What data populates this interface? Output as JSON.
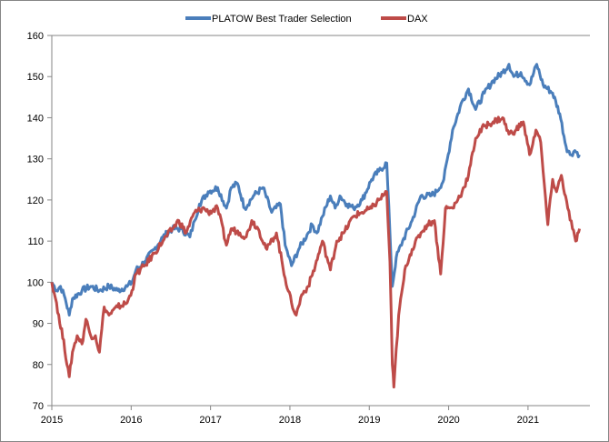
{
  "chart_data": {
    "type": "line",
    "title": "",
    "xlabel": "",
    "ylabel": "",
    "xlim": [
      2015,
      2021.78
    ],
    "ylim": [
      70,
      160
    ],
    "x_ticks": [
      "2015",
      "2016",
      "2017",
      "2018",
      "2019",
      "2020",
      "2021"
    ],
    "y_ticks": [
      "70",
      "80",
      "90",
      "100",
      "110",
      "120",
      "130",
      "140",
      "150",
      "160"
    ],
    "grid": false,
    "legend_position": "top-center",
    "series": [
      {
        "name": "PLATOW Best Trader Selection",
        "color": "#4a7ebb",
        "points": [
          [
            2015.0,
            100
          ],
          [
            2015.06,
            98
          ],
          [
            2015.11,
            99
          ],
          [
            2015.17,
            96
          ],
          [
            2015.22,
            92
          ],
          [
            2015.26,
            96
          ],
          [
            2015.38,
            98
          ],
          [
            2015.49,
            99
          ],
          [
            2015.6,
            98
          ],
          [
            2015.72,
            99
          ],
          [
            2015.83,
            98
          ],
          [
            2015.95,
            99
          ],
          [
            2016.01,
            100
          ],
          [
            2016.06,
            103
          ],
          [
            2016.17,
            105
          ],
          [
            2016.29,
            108
          ],
          [
            2016.4,
            111
          ],
          [
            2016.52,
            113
          ],
          [
            2016.63,
            113
          ],
          [
            2016.74,
            111
          ],
          [
            2016.8,
            115
          ],
          [
            2016.86,
            119
          ],
          [
            2016.97,
            122
          ],
          [
            2017.09,
            123
          ],
          [
            2017.2,
            118
          ],
          [
            2017.26,
            123
          ],
          [
            2017.34,
            124
          ],
          [
            2017.43,
            118
          ],
          [
            2017.54,
            121
          ],
          [
            2017.66,
            123
          ],
          [
            2017.77,
            117
          ],
          [
            2017.88,
            119
          ],
          [
            2017.94,
            109
          ],
          [
            2018.02,
            104
          ],
          [
            2018.11,
            108
          ],
          [
            2018.23,
            112
          ],
          [
            2018.28,
            114
          ],
          [
            2018.34,
            112
          ],
          [
            2018.41,
            116
          ],
          [
            2018.51,
            121
          ],
          [
            2018.57,
            118
          ],
          [
            2018.63,
            121
          ],
          [
            2018.72,
            119
          ],
          [
            2018.8,
            118
          ],
          [
            2018.91,
            120
          ],
          [
            2019.03,
            125
          ],
          [
            2019.12,
            127
          ],
          [
            2019.22,
            129
          ],
          [
            2019.26,
            112
          ],
          [
            2019.29,
            99
          ],
          [
            2019.34,
            106
          ],
          [
            2019.42,
            110
          ],
          [
            2019.54,
            115
          ],
          [
            2019.65,
            121
          ],
          [
            2019.77,
            121
          ],
          [
            2019.85,
            122
          ],
          [
            2019.94,
            125
          ],
          [
            2020.05,
            137
          ],
          [
            2020.17,
            144
          ],
          [
            2020.25,
            147
          ],
          [
            2020.34,
            142
          ],
          [
            2020.45,
            146
          ],
          [
            2020.56,
            149
          ],
          [
            2020.68,
            151
          ],
          [
            2020.76,
            153
          ],
          [
            2020.82,
            150
          ],
          [
            2020.91,
            151
          ],
          [
            2021.02,
            148
          ],
          [
            2021.11,
            153
          ],
          [
            2021.19,
            148
          ],
          [
            2021.31,
            146
          ],
          [
            2021.4,
            141
          ],
          [
            2021.48,
            133
          ],
          [
            2021.53,
            131
          ],
          [
            2021.59,
            132
          ],
          [
            2021.65,
            131
          ]
        ]
      },
      {
        "name": "DAX",
        "color": "#be4b48",
        "points": [
          [
            2015.0,
            100
          ],
          [
            2015.06,
            95
          ],
          [
            2015.1,
            90
          ],
          [
            2015.15,
            86
          ],
          [
            2015.19,
            80
          ],
          [
            2015.22,
            77
          ],
          [
            2015.26,
            83
          ],
          [
            2015.32,
            87
          ],
          [
            2015.38,
            85
          ],
          [
            2015.43,
            91
          ],
          [
            2015.49,
            87
          ],
          [
            2015.55,
            87
          ],
          [
            2015.6,
            83
          ],
          [
            2015.66,
            94
          ],
          [
            2015.72,
            92
          ],
          [
            2015.83,
            94
          ],
          [
            2015.95,
            95
          ],
          [
            2016.01,
            98
          ],
          [
            2016.06,
            102
          ],
          [
            2016.17,
            104
          ],
          [
            2016.29,
            107
          ],
          [
            2016.4,
            110
          ],
          [
            2016.52,
            113
          ],
          [
            2016.6,
            115
          ],
          [
            2016.69,
            112
          ],
          [
            2016.8,
            117
          ],
          [
            2016.92,
            118
          ],
          [
            2016.97,
            117
          ],
          [
            2017.09,
            118
          ],
          [
            2017.2,
            109
          ],
          [
            2017.26,
            113
          ],
          [
            2017.37,
            112
          ],
          [
            2017.45,
            111
          ],
          [
            2017.52,
            115
          ],
          [
            2017.6,
            113
          ],
          [
            2017.71,
            108
          ],
          [
            2017.83,
            112
          ],
          [
            2017.94,
            101
          ],
          [
            2018.02,
            95
          ],
          [
            2018.08,
            92
          ],
          [
            2018.15,
            97
          ],
          [
            2018.23,
            99
          ],
          [
            2018.32,
            104
          ],
          [
            2018.41,
            110
          ],
          [
            2018.51,
            103
          ],
          [
            2018.59,
            110
          ],
          [
            2018.68,
            112
          ],
          [
            2018.8,
            116
          ],
          [
            2018.91,
            117
          ],
          [
            2019.03,
            118
          ],
          [
            2019.12,
            120
          ],
          [
            2019.22,
            122
          ],
          [
            2019.26,
            105
          ],
          [
            2019.29,
            80
          ],
          [
            2019.31,
            74.5
          ],
          [
            2019.37,
            92
          ],
          [
            2019.46,
            104
          ],
          [
            2019.54,
            108
          ],
          [
            2019.65,
            112
          ],
          [
            2019.73,
            114
          ],
          [
            2019.82,
            115
          ],
          [
            2019.9,
            102
          ],
          [
            2019.96,
            118
          ],
          [
            2020.05,
            118
          ],
          [
            2020.17,
            122
          ],
          [
            2020.25,
            126
          ],
          [
            2020.34,
            135
          ],
          [
            2020.45,
            138
          ],
          [
            2020.56,
            139
          ],
          [
            2020.68,
            140
          ],
          [
            2020.76,
            136
          ],
          [
            2020.85,
            137
          ],
          [
            2020.94,
            139
          ],
          [
            2021.02,
            131
          ],
          [
            2021.1,
            137
          ],
          [
            2021.16,
            134
          ],
          [
            2021.19,
            127
          ],
          [
            2021.25,
            114
          ],
          [
            2021.31,
            125
          ],
          [
            2021.36,
            122
          ],
          [
            2021.42,
            126
          ],
          [
            2021.5,
            118
          ],
          [
            2021.56,
            113
          ],
          [
            2021.6,
            110
          ],
          [
            2021.65,
            113
          ]
        ]
      }
    ]
  }
}
